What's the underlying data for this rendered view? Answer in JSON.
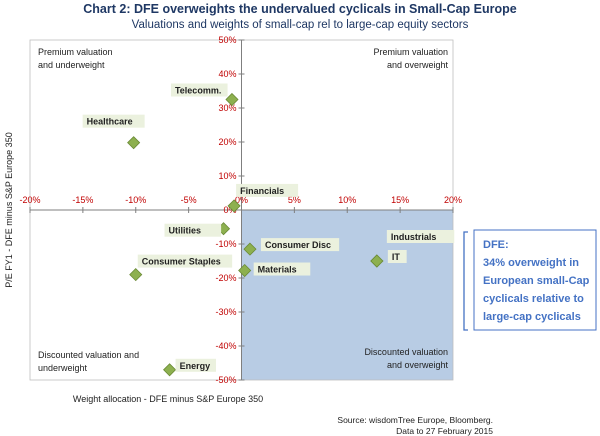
{
  "chart_data": {
    "type": "scatter",
    "title": "Chart 2: DFE overweights the undervalued cyclicals in Small-Cap Europe",
    "subtitle": "Valuations and weights of small-cap rel to large-cap equity sectors",
    "xlabel": "Weight allocation - DFE minus S&P Europe 350",
    "ylabel": "P/E FY1 - DFE  minus S&P Europe 350",
    "xlim": [
      -20,
      20
    ],
    "ylim": [
      -50,
      50
    ],
    "xticks": [
      "-20%",
      "-15%",
      "-10%",
      "-5%",
      "0%",
      "5%",
      "10%",
      "15%",
      "20%"
    ],
    "yticks": [
      "50%",
      "40%",
      "30%",
      "20%",
      "10%",
      "0%",
      "-10%",
      "-20%",
      "-30%",
      "-40%",
      "-50%"
    ],
    "points": [
      {
        "label": "Telecomm.",
        "x": -0.9,
        "y": 32.5
      },
      {
        "label": "Healthcare",
        "x": -10.2,
        "y": 19.8
      },
      {
        "label": "Financials",
        "x": -0.7,
        "y": 1.2
      },
      {
        "label": "Utilities",
        "x": -1.7,
        "y": -5.5
      },
      {
        "label": "Consumer Disc",
        "x": 0.8,
        "y": -11.5
      },
      {
        "label": "Industrials",
        "x": 12.8,
        "y": -15.0
      },
      {
        "label": "IT",
        "x": 12.8,
        "y": -15.0
      },
      {
        "label": "Consumer Staples",
        "x": -10.0,
        "y": -19.0
      },
      {
        "label": "Materials",
        "x": 0.3,
        "y": -17.8
      },
      {
        "label": "Energy",
        "x": -6.8,
        "y": -47.0
      }
    ],
    "quadrants": {
      "top_left": [
        "Premium valuation",
        "and underweight"
      ],
      "top_right": [
        "Premium valuation",
        "and overweight"
      ],
      "bottom_left": [
        "Discounted valuation and",
        "underweight"
      ],
      "bottom_right": [
        "Discounted valuation",
        "and overweight"
      ]
    },
    "callout": [
      "DFE:",
      "34% overweight in",
      "European small-Cap",
      "cyclicals relative to",
      "large-cap cyclicals"
    ],
    "source": [
      "Source: wisdomTree Europe, Bloomberg.",
      "Data to 27 February 2015"
    ],
    "colors": {
      "marker": "#8db04f",
      "marker_edge": "#6a8a36",
      "shaded_quadrant": "#b8cce4",
      "tick_text": "#c00000",
      "title": "#1f3864",
      "callout_text": "#4472c4",
      "label_box": "#ebf1de"
    }
  }
}
